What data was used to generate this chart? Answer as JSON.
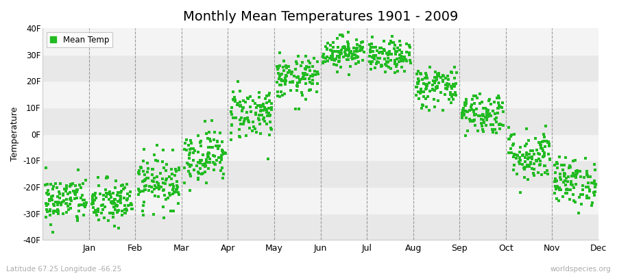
{
  "title": "Monthly Mean Temperatures 1901 - 2009",
  "xlabel": "",
  "ylabel": "Temperature",
  "ylim": [
    -40,
    40
  ],
  "yticks": [
    -40,
    -30,
    -20,
    -10,
    0,
    10,
    20,
    30,
    40
  ],
  "ytick_labels": [
    "-40F",
    "-30F",
    "-20F",
    "-10F",
    "0F",
    "10F",
    "20F",
    "30F",
    "40F"
  ],
  "months": [
    "Jan",
    "Feb",
    "Mar",
    "Apr",
    "May",
    "Jun",
    "Jul",
    "Aug",
    "Sep",
    "Oct",
    "Nov",
    "Dec"
  ],
  "dot_color": "#22bb22",
  "background_color": "#f5f5f5",
  "band_color_light": "#eeeeee",
  "band_color_white": "#f8f8f8",
  "legend_label": "Mean Temp",
  "footer_left": "Latitude 67.25 Longitude -66.25",
  "footer_right": "worldspecies.org",
  "title_fontsize": 14,
  "monthly_means": [
    -25,
    -26,
    -18,
    -8,
    8,
    21,
    31,
    29,
    18,
    8,
    -8,
    -18
  ],
  "monthly_std": [
    4.5,
    4.5,
    5,
    5,
    5,
    4,
    3,
    3,
    4,
    4,
    5,
    4.5
  ],
  "n_years": 109,
  "seed": 42
}
